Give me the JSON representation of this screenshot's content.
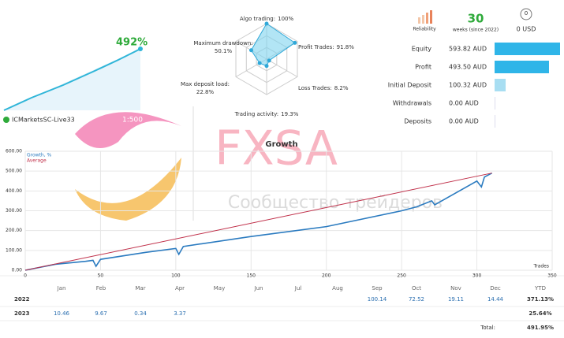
{
  "account": {
    "growth": "492%",
    "name": "ICMarketsSC-Live33",
    "leverage": "1:500"
  },
  "radar": [
    {
      "name": "Algo trading:",
      "value": 100,
      "label": "100%"
    },
    {
      "name": "Profit Trades:",
      "value": 91.8,
      "label": "91.8%"
    },
    {
      "name": "Loss Trades:",
      "value": 8.2,
      "label": "8.2%"
    },
    {
      "name": "Trading activity:",
      "value": 19.3,
      "label": "19.3%"
    },
    {
      "name": "Max deposit load:",
      "value": 22.8,
      "label": "22.8%"
    },
    {
      "name": "Maximum drawdown:",
      "value": 50.1,
      "label": "50.1%"
    }
  ],
  "stats": {
    "reliability": "Reliability",
    "weeks": "30",
    "weeks_label": "weeks (since 2022)",
    "subscribers": "0",
    "subscription": "0 USD"
  },
  "balance": [
    {
      "name": "Equity",
      "value": 593.82,
      "label": "593.82 AUD"
    },
    {
      "name": "Profit",
      "value": 493.5,
      "label": "493.50 AUD"
    },
    {
      "name": "Initial Deposit",
      "value": 100.32,
      "label": "100.32 AUD"
    },
    {
      "name": "Withdrawals",
      "value": 0,
      "label": "0.00 AUD"
    },
    {
      "name": "Deposits",
      "value": 0,
      "label": "0.00 AUD"
    }
  ],
  "watermark": {
    "brand": "FXSA",
    "tagline": "Сообщество трейдеров"
  },
  "chart_data": {
    "type": "line",
    "title": "Growth",
    "x_label": "Trades",
    "xlim": [
      0,
      350
    ],
    "xticks": [
      0,
      50,
      100,
      150,
      200,
      250,
      300,
      350
    ],
    "ylim": [
      0,
      600
    ],
    "yticks": [
      {
        "value": 0,
        "label": "0.00"
      },
      {
        "value": 100,
        "label": "100.00"
      },
      {
        "value": 200,
        "label": "200.00"
      },
      {
        "value": 300,
        "label": "300.00"
      },
      {
        "value": 400,
        "label": "400.00"
      },
      {
        "value": 500,
        "label": "500.00"
      },
      {
        "value": 600,
        "label": "600.00"
      }
    ],
    "grid": true,
    "series": [
      {
        "name": "Growth, %",
        "color": "#2b7bc0",
        "x": [
          0,
          20,
          40,
          45,
          47,
          50,
          80,
          100,
          102,
          105,
          150,
          200,
          250,
          260,
          270,
          272,
          300,
          303,
          305,
          310
        ],
        "values": [
          0,
          30,
          45,
          50,
          20,
          55,
          90,
          110,
          80,
          120,
          170,
          220,
          300,
          320,
          350,
          330,
          450,
          420,
          470,
          490
        ]
      },
      {
        "name": "Average",
        "color": "#c0304a",
        "x": [
          0,
          310
        ],
        "values": [
          0,
          490
        ]
      }
    ]
  },
  "table": {
    "columns": [
      "Jan",
      "Feb",
      "Mar",
      "Apr",
      "May",
      "Jun",
      "Jul",
      "Aug",
      "Sep",
      "Oct",
      "Nov",
      "Dec",
      "YTD"
    ],
    "rows": [
      {
        "year": "2022",
        "cells": [
          null,
          null,
          null,
          null,
          null,
          null,
          null,
          null,
          "100.14",
          "72.52",
          "19.11",
          "14.44",
          "371.13%"
        ]
      },
      {
        "year": "2023",
        "cells": [
          "10.46",
          "9.67",
          "0.34",
          "3.37",
          null,
          null,
          null,
          null,
          null,
          null,
          null,
          null,
          "25.64%"
        ]
      }
    ],
    "total_label": "Total:",
    "total": "491.95%"
  }
}
